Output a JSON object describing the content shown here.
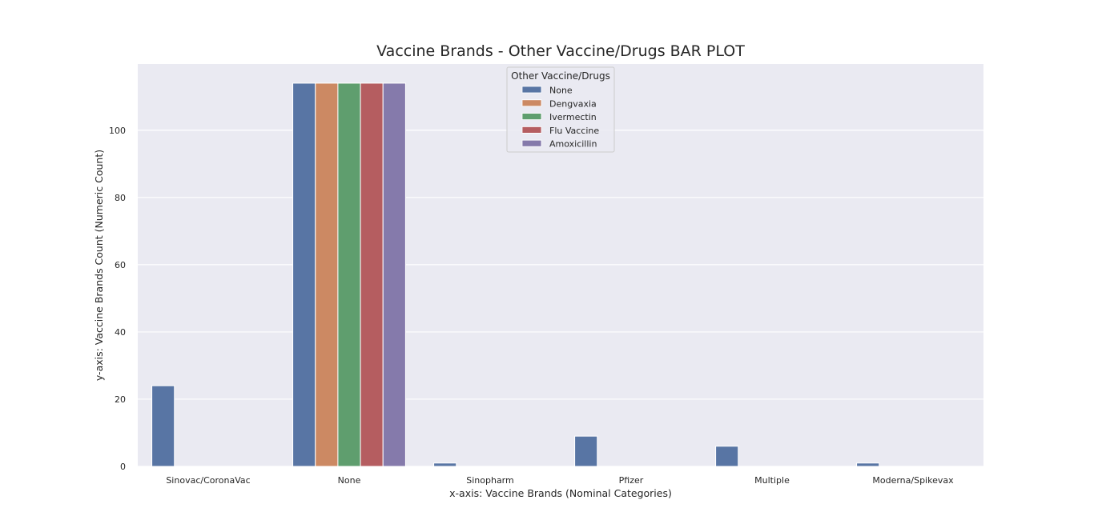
{
  "chart_data": {
    "type": "bar",
    "title": "Vaccine Brands - Other Vaccine/Drugs BAR PLOT",
    "xlabel": "x-axis: Vaccine Brands (Nominal Categories)",
    "ylabel": "y-axis: Vaccine Brands Count (Numeric Count)",
    "categories": [
      "Sinovac/CoronaVac",
      "None",
      "Sinopharm",
      "Pfizer",
      "Multiple",
      "Moderna/Spikevax"
    ],
    "ylim": [
      0,
      119.7
    ],
    "yticks": [
      0,
      20,
      40,
      60,
      80,
      100
    ],
    "grid": true,
    "legend": {
      "title": "Other Vaccine/Drugs",
      "placement": "top-center"
    },
    "series": [
      {
        "name": "None",
        "color": "#5875a4",
        "values": [
          24,
          114,
          1,
          9,
          6,
          1
        ]
      },
      {
        "name": "Dengvaxia",
        "color": "#cc8963",
        "values": [
          0,
          114,
          0,
          0,
          0,
          0
        ]
      },
      {
        "name": "Ivermectin",
        "color": "#5f9e6e",
        "values": [
          0,
          114,
          0,
          0,
          0,
          0
        ]
      },
      {
        "name": "Flu Vaccine",
        "color": "#b55d60",
        "values": [
          0,
          114,
          0,
          0,
          0,
          0
        ]
      },
      {
        "name": "Amoxicillin",
        "color": "#857aab",
        "values": [
          0,
          114,
          0,
          0,
          0,
          0
        ]
      }
    ],
    "plot_background": "#eaeaf2",
    "grid_color": "#ffffff"
  }
}
